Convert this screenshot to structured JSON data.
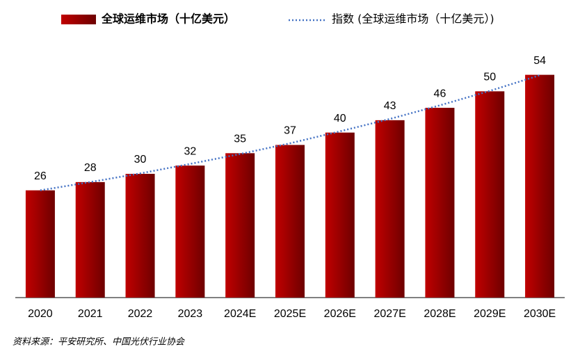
{
  "chart_data": {
    "type": "bar",
    "categories": [
      "2020",
      "2021",
      "2022",
      "2023",
      "2024E",
      "2025E",
      "2026E",
      "2027E",
      "2028E",
      "2029E",
      "2030E"
    ],
    "series": [
      {
        "name": "全球运维市场（十亿美元）",
        "type": "bar",
        "color": "#c00000",
        "color_dark": "#6e0000",
        "values": [
          26,
          28,
          30,
          32,
          35,
          37,
          40,
          43,
          46,
          50,
          54
        ]
      },
      {
        "name": "指数 (全球运维市场（十亿美元）)",
        "type": "line",
        "style": "dotted",
        "color": "#4472c4",
        "values": [
          26,
          28.0,
          30.1,
          32.4,
          34.8,
          37.4,
          40.3,
          43.3,
          46.6,
          50.1,
          53.9
        ]
      }
    ],
    "ylim": [
      0,
      60
    ],
    "source": "资料来源：平安研究所、中国光伏行业协会"
  }
}
